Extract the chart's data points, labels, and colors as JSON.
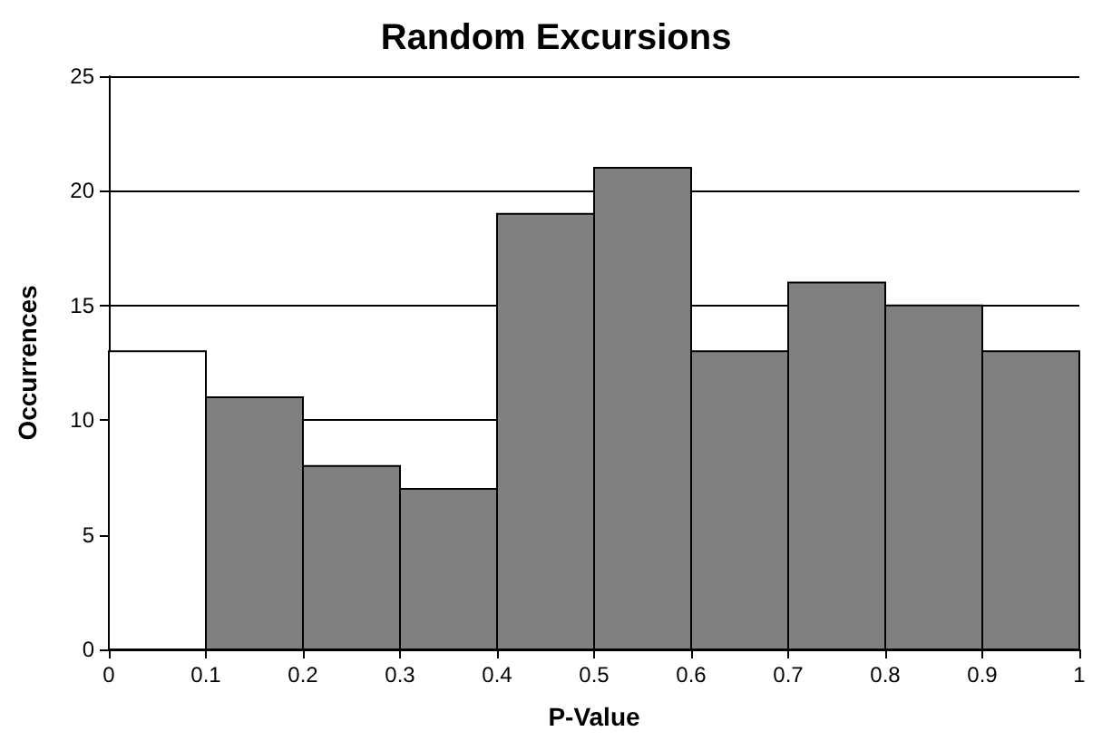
{
  "chart_data": {
    "type": "histogram",
    "title": "Random Excursions",
    "xlabel": "P-Value",
    "ylabel": "Occurrences",
    "bins": [
      0,
      0.1,
      0.2,
      0.3,
      0.4,
      0.5,
      0.6,
      0.7,
      0.8,
      0.9,
      1
    ],
    "values": [
      13,
      11,
      8,
      7,
      19,
      21,
      13,
      16,
      15,
      13
    ],
    "colors": [
      "#ffffff",
      "#808080",
      "#808080",
      "#808080",
      "#808080",
      "#808080",
      "#808080",
      "#808080",
      "#808080",
      "#808080"
    ],
    "xlim": [
      0,
      1
    ],
    "xticks": [
      0,
      0.1,
      0.2,
      0.3,
      0.4,
      0.5,
      0.6,
      0.7,
      0.8,
      0.9,
      1
    ],
    "ylim": [
      0,
      25
    ],
    "yticks": [
      0,
      5,
      10,
      15,
      20,
      25
    ],
    "grid": "y"
  }
}
